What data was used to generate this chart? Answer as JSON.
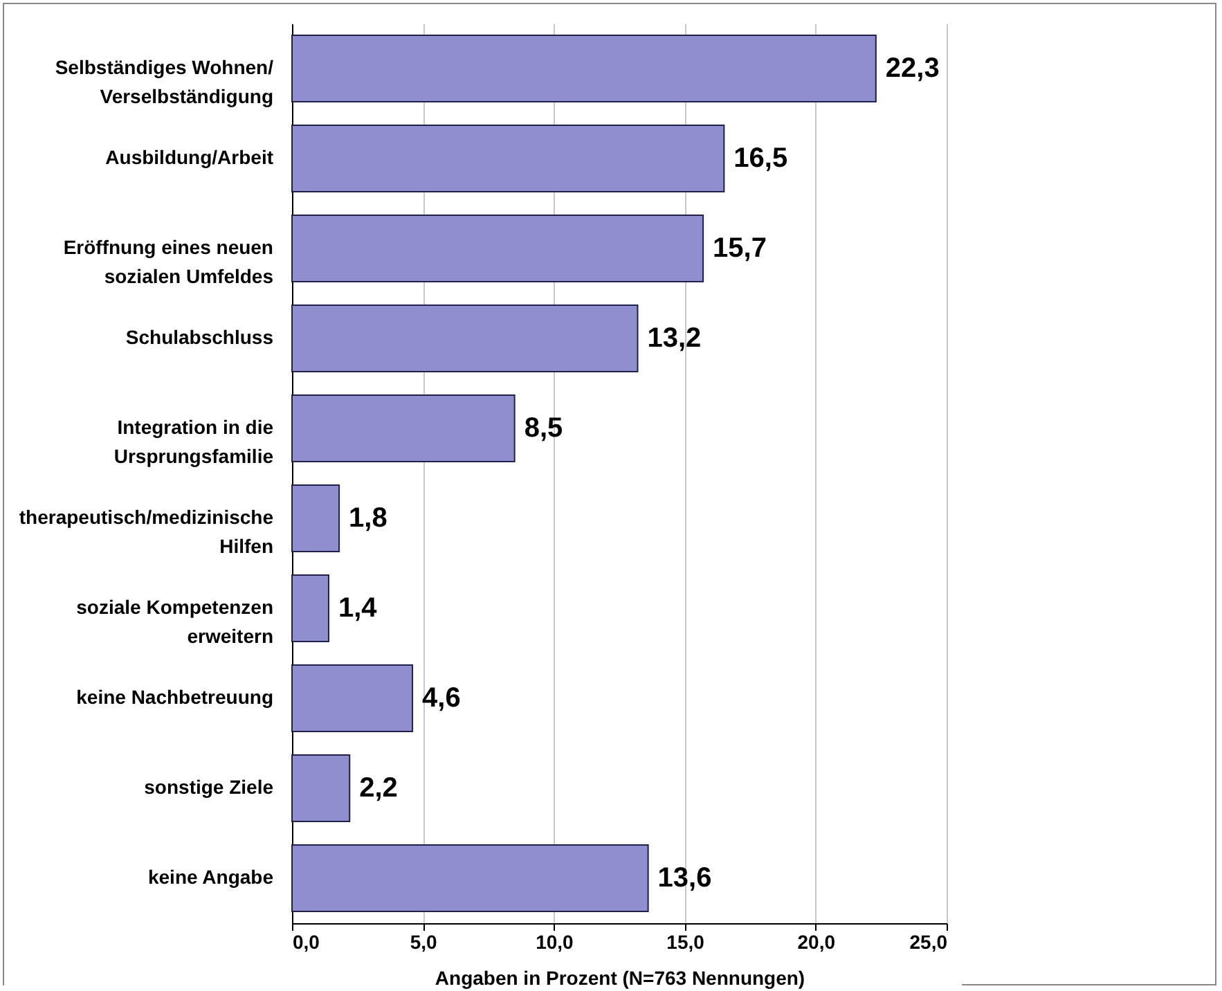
{
  "chart_data": {
    "type": "bar",
    "orientation": "horizontal",
    "categories": [
      "Selbständiges Wohnen/Verselbständigung",
      "Ausbildung/Arbeit",
      "Eröffnung eines neuen sozialen Umfeldes",
      "Schulabschluss",
      "Integration in die Ursprungsfamilie",
      "therapeutisch/medizinische Hilfen",
      "soziale Kompetenzen erweitern",
      "keine Nachbetreuung",
      "sonstige Ziele",
      "keine Angabe"
    ],
    "values": [
      22.3,
      16.5,
      15.7,
      13.2,
      8.5,
      1.8,
      1.4,
      4.6,
      2.2,
      13.6
    ],
    "value_labels": [
      "22,3",
      "16,5",
      "15,7",
      "13,2",
      "8,5",
      "1,8",
      "1,4",
      "4,6",
      "2,2",
      "13,6"
    ],
    "color": "#8f8fd0",
    "xlim": [
      0,
      25
    ],
    "xticks": [
      {
        "value": 0,
        "label": "0,0"
      },
      {
        "value": 5,
        "label": "5,0"
      },
      {
        "value": 10,
        "label": "10,0"
      },
      {
        "value": 15,
        "label": "15,0"
      },
      {
        "value": 20,
        "label": "20,0"
      },
      {
        "value": 25,
        "label": "25,0"
      }
    ],
    "xlabel": "Angaben in Prozent (N=763 Nennungen)",
    "grid": "x"
  }
}
